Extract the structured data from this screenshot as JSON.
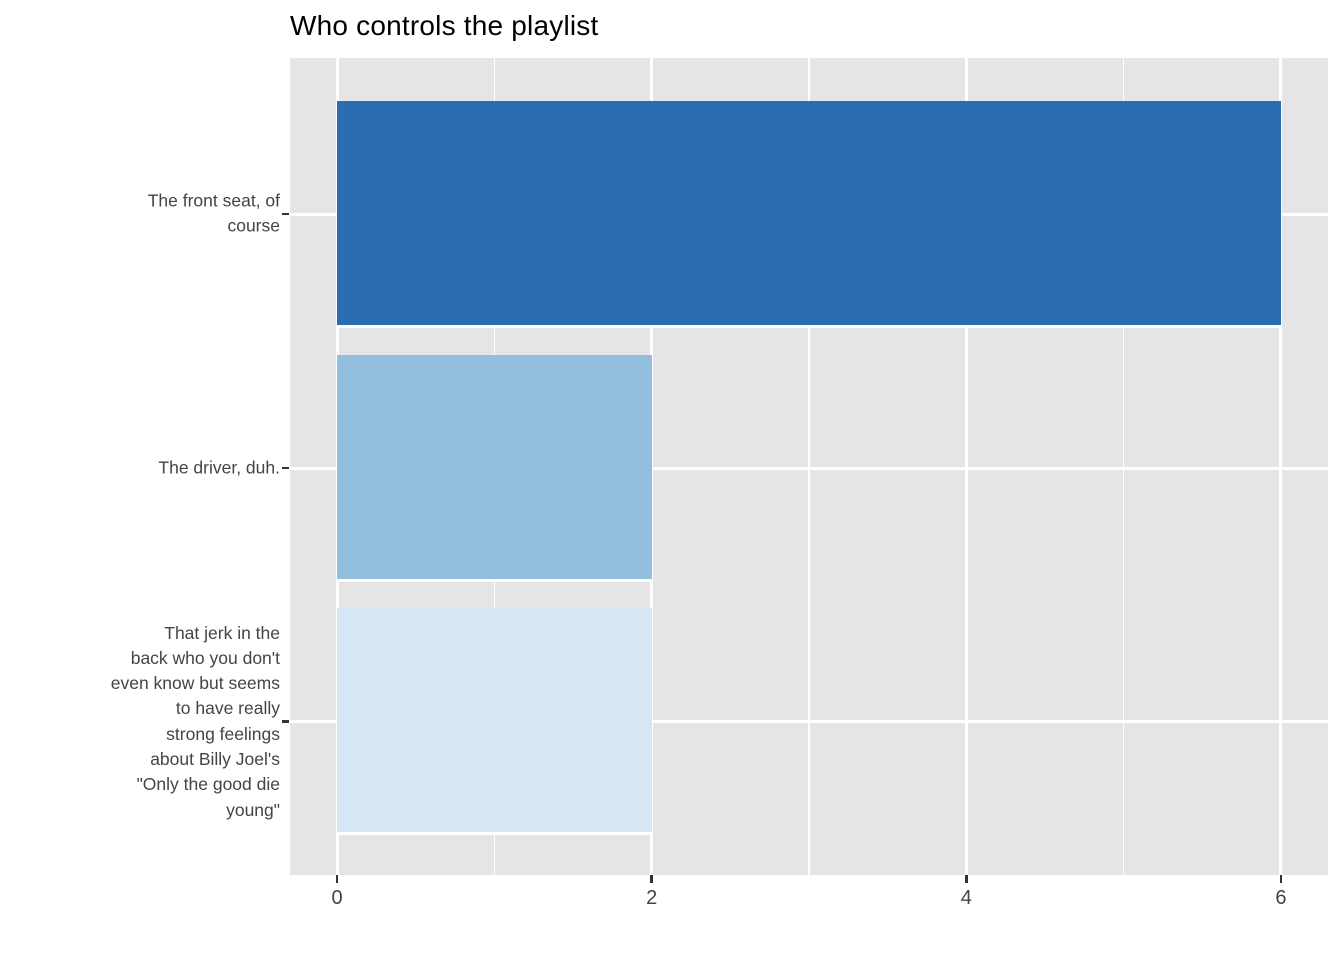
{
  "title": "Who controls the playlist",
  "chart_data": {
    "type": "bar",
    "orientation": "horizontal",
    "title": "Who controls the playlist",
    "categories": [
      "The front seat, of\ncourse",
      "The driver, duh.",
      "That jerk in the\nback who you don't\neven know but seems\nto have really\nstrong feelings\nabout Billy Joel's\n\"Only the good die\nyoung\""
    ],
    "values": [
      6,
      2,
      2
    ],
    "bar_colors": [
      "#2B6DB1",
      "#92BFDE",
      "#D7E6F4"
    ],
    "xlabel": "",
    "ylabel": "",
    "x_ticks": [
      "0",
      "2",
      "4",
      "6"
    ],
    "x_tick_values": [
      0,
      2,
      4,
      6
    ],
    "x_minor_tick_values": [
      1,
      3,
      5
    ],
    "xlim": [
      -0.3,
      6.3
    ],
    "grid": "on",
    "legend": "none",
    "colors": {
      "panel_background": "#E5E5E5",
      "grid": "#FFFFFF",
      "tick": "#333333",
      "axis_text": "#444444",
      "title_text": "#000000"
    }
  }
}
